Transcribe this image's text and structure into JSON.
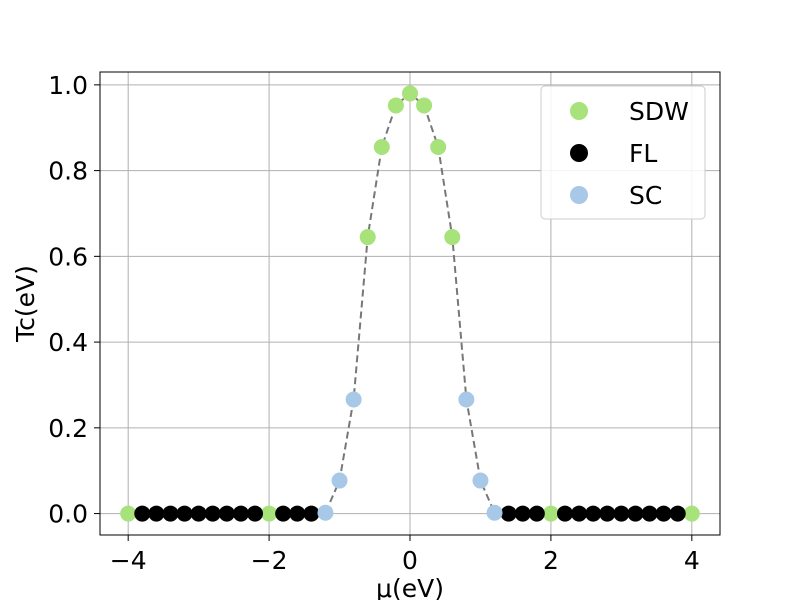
{
  "chart_data": {
    "type": "scatter",
    "title": "",
    "xlabel": "μ(eV)",
    "ylabel": "Tc(eV)",
    "xlim": [
      -4.4,
      4.4
    ],
    "ylim": [
      -0.05,
      1.03
    ],
    "xticks": [
      -4,
      -2,
      0,
      2,
      4
    ],
    "xtick_labels": [
      "−4",
      "−2",
      "0",
      "2",
      "4"
    ],
    "yticks": [
      0.0,
      0.2,
      0.4,
      0.6,
      0.8,
      1.0
    ],
    "ytick_labels": [
      "0.0",
      "0.2",
      "0.4",
      "0.6",
      "0.8",
      "1.0"
    ],
    "grid": true,
    "legend_position": "top-right",
    "curve": {
      "style": "dashed",
      "color": "#777777",
      "x": [
        -4.0,
        -3.8,
        -3.6,
        -3.4,
        -3.2,
        -3.0,
        -2.8,
        -2.6,
        -2.4,
        -2.2,
        -2.0,
        -1.8,
        -1.6,
        -1.4,
        -1.2,
        -1.0,
        -0.8,
        -0.6,
        -0.4,
        -0.2,
        0.0,
        0.2,
        0.4,
        0.6,
        0.8,
        1.0,
        1.2,
        1.4,
        1.6,
        1.8,
        2.0,
        2.2,
        2.4,
        2.6,
        2.8,
        3.0,
        3.2,
        3.4,
        3.6,
        3.8,
        4.0
      ],
      "y": [
        0,
        0,
        0,
        0,
        0,
        0,
        0,
        0,
        0,
        0,
        0,
        0,
        0,
        0,
        0.002,
        0.077,
        0.266,
        0.645,
        0.855,
        0.952,
        0.98,
        0.952,
        0.855,
        0.645,
        0.266,
        0.077,
        0.002,
        0,
        0,
        0,
        0,
        0,
        0,
        0,
        0,
        0,
        0,
        0,
        0,
        0,
        0
      ]
    },
    "series": [
      {
        "name": "SDW",
        "color": "#a8e27a",
        "x": [
          -4.0,
          -2.0,
          -0.6,
          -0.4,
          -0.2,
          0.0,
          0.2,
          0.4,
          0.6,
          2.0,
          4.0
        ],
        "y": [
          0.0,
          0.0,
          0.645,
          0.855,
          0.952,
          0.98,
          0.952,
          0.855,
          0.645,
          0.0,
          0.0
        ]
      },
      {
        "name": "FL",
        "color": "#000000",
        "x": [
          -3.8,
          -3.6,
          -3.4,
          -3.2,
          -3.0,
          -2.8,
          -2.6,
          -2.4,
          -2.2,
          -1.8,
          -1.6,
          -1.4,
          1.4,
          1.6,
          1.8,
          2.2,
          2.4,
          2.6,
          2.8,
          3.0,
          3.2,
          3.4,
          3.6,
          3.8
        ],
        "y": [
          0,
          0,
          0,
          0,
          0,
          0,
          0,
          0,
          0,
          0,
          0,
          0,
          0,
          0,
          0,
          0,
          0,
          0,
          0,
          0,
          0,
          0,
          0,
          0
        ]
      },
      {
        "name": "SC",
        "color": "#a7c8e6",
        "x": [
          -1.2,
          -1.0,
          -0.8,
          0.8,
          1.0,
          1.2
        ],
        "y": [
          0.002,
          0.077,
          0.266,
          0.266,
          0.077,
          0.002
        ]
      }
    ]
  }
}
